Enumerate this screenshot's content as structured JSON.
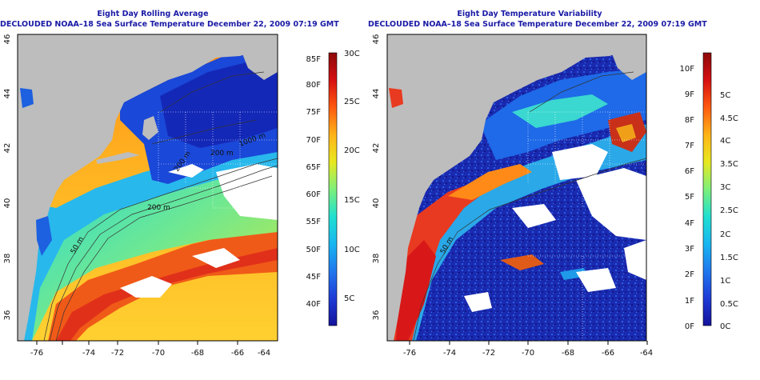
{
  "left_panel": {
    "title": "Eight Day Rolling Average",
    "subtitle": "DECLOUDED NOAA–18 Sea Surface Temperature December 22, 2009 07:19 GMT",
    "x_ticks": [
      "-76",
      "-74",
      "-72",
      "-70",
      "-68",
      "-66",
      "-64"
    ],
    "y_ticks": [
      "36",
      "38",
      "40",
      "42",
      "44",
      "46"
    ],
    "contour_labels": [
      "50 m",
      "200 m",
      "200 m",
      "1000 m",
      "200 m"
    ],
    "colorbar": {
      "f_labels": [
        "40F",
        "45F",
        "50F",
        "55F",
        "60F",
        "65F",
        "70F",
        "75F",
        "80F",
        "85F"
      ],
      "c_labels": [
        "5C",
        "10C",
        "15C",
        "20C",
        "25C",
        "30C"
      ],
      "colors": [
        "#13139a",
        "#1e3bd6",
        "#1f78ee",
        "#18b6f0",
        "#20e0d0",
        "#7ef07a",
        "#e8e81f",
        "#ffb419",
        "#ff5a10",
        "#d61010",
        "#8c0a0a"
      ]
    }
  },
  "right_panel": {
    "title": "Eight Day Temperature Variability",
    "subtitle": "DECLOUDED NOAA–18 Sea Surface Temperature December 22, 2009 07:19 GMT",
    "x_ticks": [
      "-76",
      "-74",
      "-72",
      "-70",
      "-68",
      "-66",
      "-64"
    ],
    "y_ticks": [
      "36",
      "38",
      "40",
      "42",
      "44",
      "46"
    ],
    "contour_labels": [
      "50 m"
    ],
    "colorbar": {
      "f_labels": [
        "0F",
        "1F",
        "2F",
        "3F",
        "4F",
        "5F",
        "6F",
        "7F",
        "8F",
        "9F",
        "10F"
      ],
      "c_labels": [
        "0C",
        "0.5C",
        "1C",
        "1.5C",
        "2C",
        "2.5C",
        "3C",
        "3.5C",
        "4C",
        "4.5C",
        "5C"
      ],
      "colors": [
        "#13139a",
        "#1e3bd6",
        "#1f78ee",
        "#18b6f0",
        "#20e0d0",
        "#7ef07a",
        "#e8e81f",
        "#ffb419",
        "#ff5a10",
        "#d61010",
        "#8c0a0a"
      ]
    }
  }
}
